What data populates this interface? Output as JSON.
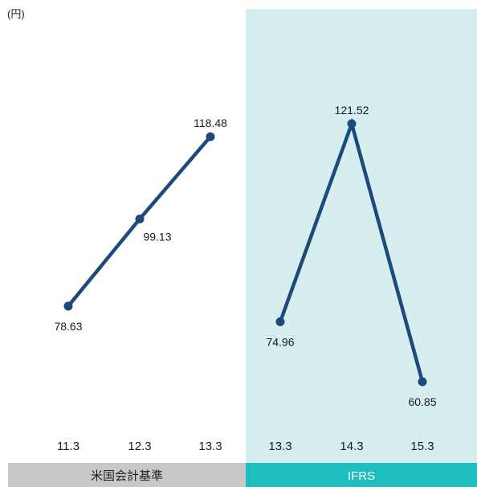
{
  "chart_data": {
    "type": "line",
    "unit_label": "(円)",
    "segments": [
      {
        "label": "米国会計基準",
        "band_color": "#c8c8c8",
        "categories": [
          "11.3",
          "12.3",
          "13.3"
        ],
        "values": [
          78.63,
          99.13,
          118.48
        ],
        "value_labels": [
          "78.63",
          "99.13",
          "118.48"
        ],
        "label_positions": [
          "below",
          "below-right",
          "above"
        ]
      },
      {
        "label": "IFRS",
        "band_color": "#1fbdbf",
        "highlight_color": "#d6eeee",
        "categories": [
          "13.3",
          "14.3",
          "15.3"
        ],
        "values": [
          74.96,
          121.52,
          60.85
        ],
        "value_labels": [
          "74.96",
          "121.52",
          "60.85"
        ],
        "label_positions": [
          "below",
          "above",
          "below"
        ]
      }
    ],
    "ylim": [
      60.85,
      121.52
    ],
    "grid": false,
    "line_color": "#1c4a7c"
  }
}
